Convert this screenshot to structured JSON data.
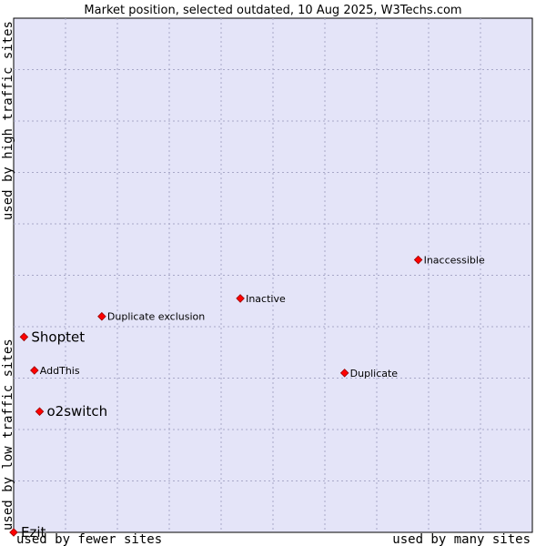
{
  "chart_data": {
    "type": "scatter",
    "title": "Market position, selected outdated, 10 Aug 2025, W3Techs.com",
    "xlabel_left": "used by fewer sites",
    "xlabel_right": "used by many sites",
    "ylabel_bottom": "used by low traffic sites",
    "ylabel_top": "used by high traffic sites",
    "xlim": [
      0,
      10
    ],
    "ylim": [
      0,
      10
    ],
    "grid": true,
    "colors": {
      "plot_background": "#e4e4f8",
      "point": "#ff0000",
      "point_outline": "#990000"
    },
    "points": [
      {
        "label": "Inaccessible",
        "x": 7.8,
        "y": 5.3,
        "size": "small"
      },
      {
        "label": "Inactive",
        "x": 4.37,
        "y": 4.55,
        "size": "small"
      },
      {
        "label": "Duplicate exclusion",
        "x": 1.7,
        "y": 4.2,
        "size": "small"
      },
      {
        "label": "Shoptet",
        "x": 0.2,
        "y": 3.8,
        "size": "large"
      },
      {
        "label": "AddThis",
        "x": 0.4,
        "y": 3.15,
        "size": "small"
      },
      {
        "label": "Duplicate",
        "x": 6.38,
        "y": 3.1,
        "size": "small"
      },
      {
        "label": "o2switch",
        "x": 0.5,
        "y": 2.35,
        "size": "large"
      },
      {
        "label": "Ezit",
        "x": 0.0,
        "y": 0.0,
        "size": "large"
      }
    ]
  }
}
